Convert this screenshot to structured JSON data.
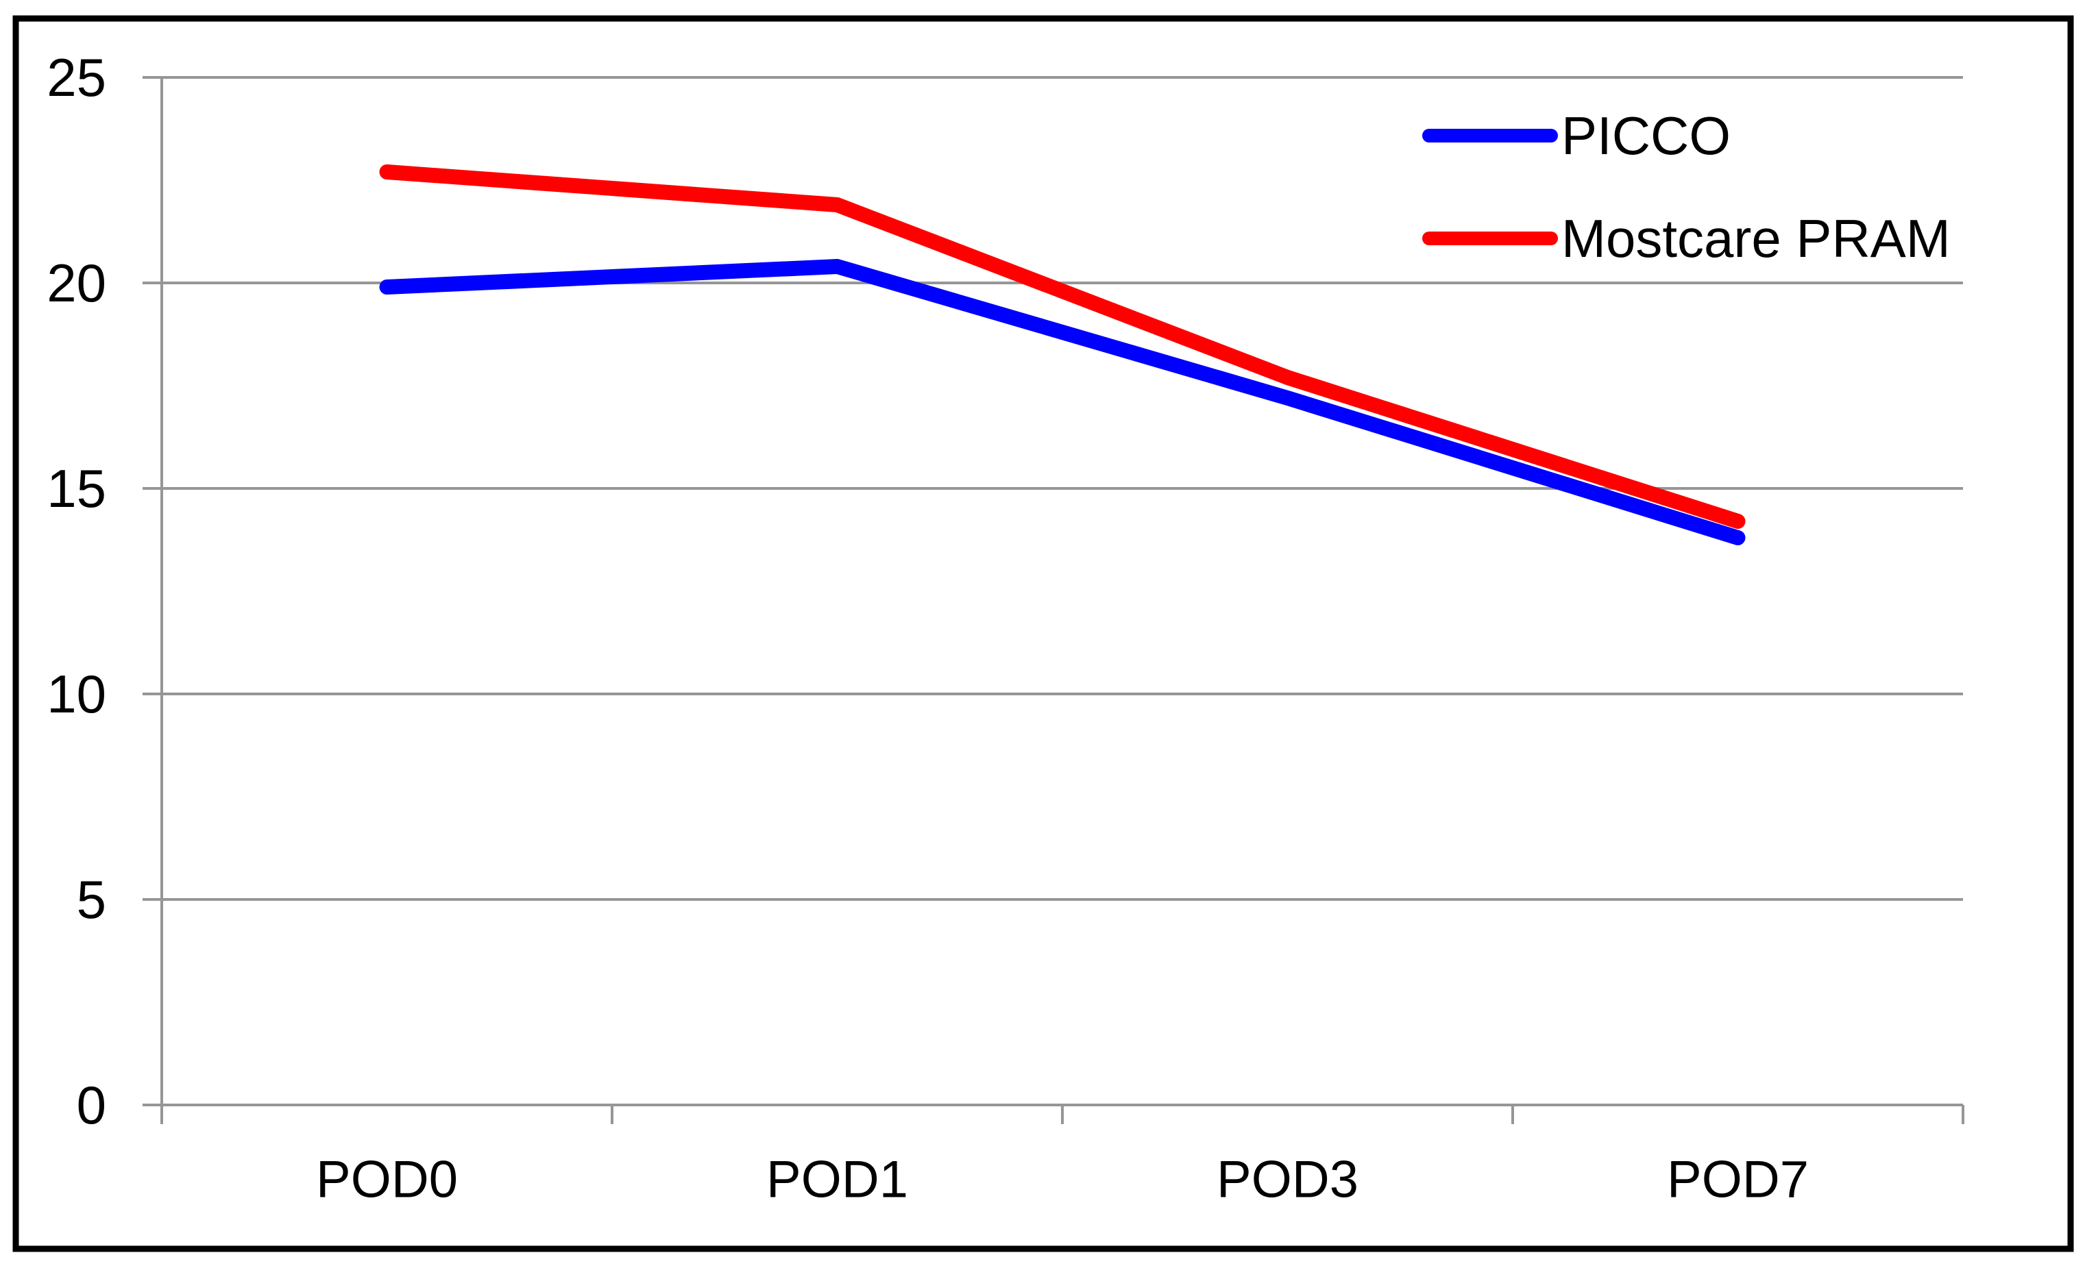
{
  "figure": {
    "background": "#FFFFFF",
    "border_color": "#000000",
    "axis_color": "#969696",
    "text_color": "#000000"
  },
  "legend": {
    "position": "top-right",
    "items": [
      {
        "label": "PICCO",
        "color": "#0000FF"
      },
      {
        "label": "Mostcare PRAM",
        "color": "#FF0000"
      }
    ]
  },
  "chart_data": {
    "type": "line",
    "title": "",
    "xlabel": "",
    "ylabel": "",
    "categories": [
      "POD0",
      "POD1",
      "POD3",
      "POD7"
    ],
    "series": [
      {
        "name": "PICCO",
        "color": "#0000FF",
        "values": [
          19.9,
          20.4,
          17.2,
          13.8
        ]
      },
      {
        "name": "Mostcare PRAM",
        "color": "#FF0000",
        "values": [
          22.7,
          21.9,
          17.7,
          14.2
        ]
      }
    ],
    "ylim": [
      0,
      25
    ],
    "yticks": [
      0,
      5,
      10,
      15,
      20,
      25
    ],
    "grid": true,
    "legend_position": "top-right"
  }
}
